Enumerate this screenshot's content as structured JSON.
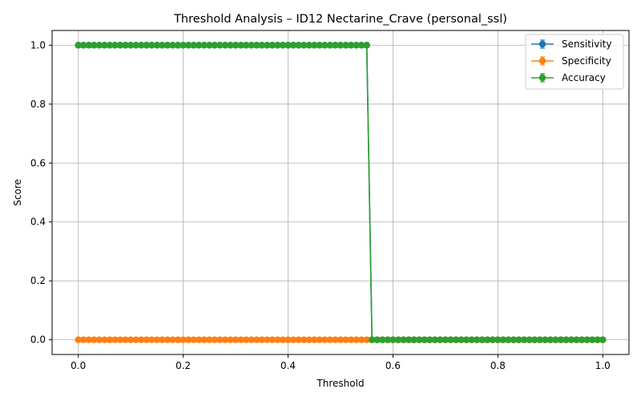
{
  "chart_data": {
    "type": "line",
    "title": "Threshold Analysis – ID12 Nectarine_Crave (personal_ssl)",
    "xlabel": "Threshold",
    "ylabel": "Score",
    "xlim": [
      -0.05,
      1.05
    ],
    "ylim": [
      -0.05,
      1.05
    ],
    "xticks": [
      0.0,
      0.2,
      0.4,
      0.6,
      0.8,
      1.0
    ],
    "xtick_labels": [
      "0.0",
      "0.2",
      "0.4",
      "0.6",
      "0.8",
      "1.0"
    ],
    "yticks": [
      0.0,
      0.2,
      0.4,
      0.6,
      0.8,
      1.0
    ],
    "ytick_labels": [
      "0.0",
      "0.2",
      "0.4",
      "0.6",
      "0.8",
      "1.0"
    ],
    "grid": true,
    "legend_position": "top-right",
    "x": {
      "start": 0.0,
      "stop": 1.0,
      "count": 101
    },
    "series": [
      {
        "name": "Sensitivity",
        "color": "#1f77b4",
        "marker": "circle",
        "error_bars": true,
        "segments": [
          {
            "x_from": 0.0,
            "x_to": 0.55,
            "value": 1.0
          },
          {
            "x_from": 0.56,
            "x_to": 1.0,
            "value": 0.0
          }
        ]
      },
      {
        "name": "Specificity",
        "color": "#ff7f0e",
        "marker": "circle",
        "error_bars": true,
        "segments": [
          {
            "x_from": 0.0,
            "x_to": 1.0,
            "value": 0.0
          }
        ]
      },
      {
        "name": "Accuracy",
        "color": "#2ca02c",
        "marker": "circle",
        "error_bars": true,
        "segments": [
          {
            "x_from": 0.0,
            "x_to": 0.55,
            "value": 1.0
          },
          {
            "x_from": 0.56,
            "x_to": 1.0,
            "value": 0.0
          }
        ]
      }
    ]
  }
}
